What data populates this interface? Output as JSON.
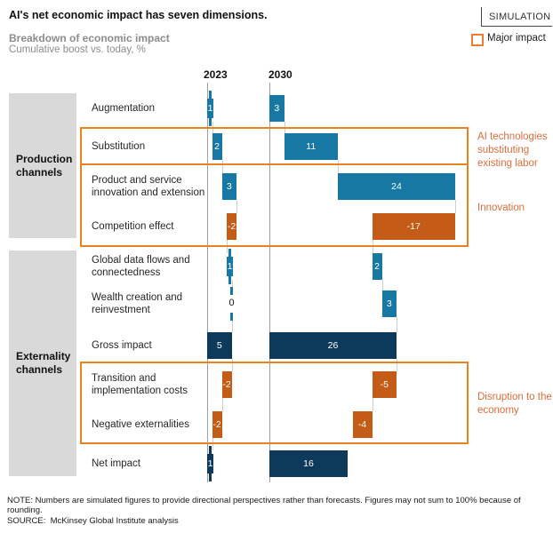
{
  "header": {
    "title": "AI's net economic impact has seven dimensions.",
    "subtitle": "Breakdown of economic impact",
    "unit_line": "Cumulative boost vs. today, %",
    "simulation_label": "SIMULATION",
    "legend_major_impact": "Major impact"
  },
  "groups": [
    {
      "label": "Production channels"
    },
    {
      "label": "Externality channels"
    }
  ],
  "annotations": [
    {
      "label": "AI technologies substituting existing labor"
    },
    {
      "label": "Innovation"
    },
    {
      "label": "Disruption to the economy"
    }
  ],
  "chart_data": {
    "type": "bar",
    "subtype": "waterfall",
    "title": "Breakdown of economic impact",
    "ylabel": "Cumulative boost vs. today, %",
    "columns": [
      "2023",
      "2030"
    ],
    "rows": [
      {
        "label": "Augmentation",
        "kind": "flow",
        "color": "blue",
        "values": [
          1,
          3
        ]
      },
      {
        "label": "Substitution",
        "kind": "flow",
        "color": "blue",
        "values": [
          2,
          11
        ]
      },
      {
        "label": "Product and service innovation and extension",
        "kind": "flow",
        "color": "blue",
        "values": [
          3,
          24
        ]
      },
      {
        "label": "Competition effect",
        "kind": "flow",
        "color": "orange",
        "values": [
          -2,
          -17
        ]
      },
      {
        "label": "Global data flows and connectedness",
        "kind": "flow",
        "color": "blue",
        "values": [
          1,
          2
        ]
      },
      {
        "label": "Wealth creation and reinvestment",
        "kind": "flow",
        "color": "blue",
        "values": [
          0,
          3
        ]
      },
      {
        "label": "Gross impact",
        "kind": "total",
        "color": "navy",
        "values": [
          5,
          26
        ]
      },
      {
        "label": "Transition and implementation costs",
        "kind": "flow",
        "color": "orange",
        "values": [
          -2,
          -5
        ]
      },
      {
        "label": "Negative externalities",
        "kind": "flow",
        "color": "orange",
        "values": [
          -2,
          -4
        ]
      },
      {
        "label": "Net impact",
        "kind": "total",
        "color": "navy",
        "values": [
          1,
          16
        ]
      }
    ],
    "colors": {
      "blue": "#1878A4",
      "navy": "#0D3A5B",
      "orange": "#C45B17",
      "major_impact_border": "#E8821E",
      "annotation_text": "#DC6E3C",
      "legend_swatch": "#ED7D31"
    }
  },
  "note": "NOTE: Numbers are simulated figures to provide directional perspectives rather than forecasts. Figures may not sum to 100% because of rounding.",
  "source_label": "SOURCE:",
  "source": "McKinsey Global Institute analysis"
}
